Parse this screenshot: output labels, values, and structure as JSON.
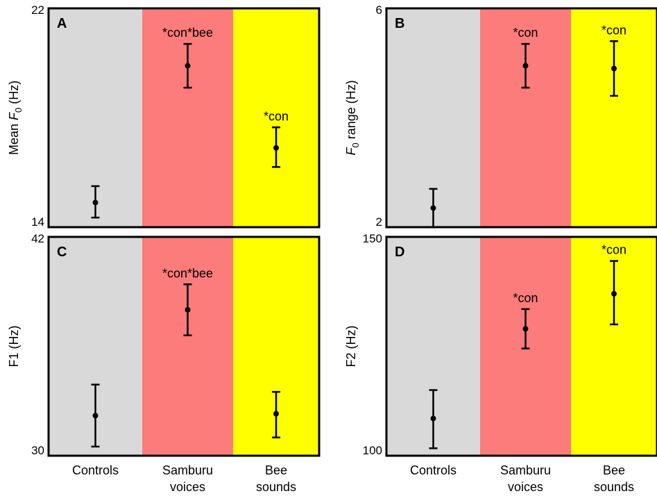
{
  "colors": {
    "controls_band": "#d9d9d9",
    "samburu_band": "#fc7b7b",
    "bee_band": "#ffff00",
    "frame": "#000000",
    "marker": "#000000"
  },
  "chart_data": [
    {
      "panel_letter": "A",
      "type": "scatter",
      "error_bars": true,
      "ylabel_pre": "Mean ",
      "ylabel_sym": "F",
      "ylabel_sub": "0",
      "ylabel_post": " (Hz)",
      "ylim": [
        14,
        22
      ],
      "y_ticks": [
        "22",
        "14"
      ],
      "categories": [
        "Controls",
        "Samburu voices",
        "Bee sounds"
      ],
      "points": [
        {
          "y": 14.9,
          "lo": 14.35,
          "hi": 15.5,
          "annotation": ""
        },
        {
          "y": 19.9,
          "lo": 19.1,
          "hi": 20.7,
          "annotation": "*con*bee"
        },
        {
          "y": 16.9,
          "lo": 16.2,
          "hi": 17.65,
          "annotation": "*con"
        }
      ]
    },
    {
      "panel_letter": "B",
      "type": "scatter",
      "error_bars": true,
      "ylabel_pre": "",
      "ylabel_sym": "F",
      "ylabel_sub": "0",
      "ylabel_post": " range (Hz)",
      "ylim": [
        2,
        6
      ],
      "y_ticks": [
        "6",
        "2"
      ],
      "categories": [
        "Controls",
        "Samburu voices",
        "Bee sounds"
      ],
      "points": [
        {
          "y": 2.35,
          "lo": 2.0,
          "hi": 2.7,
          "annotation": ""
        },
        {
          "y": 4.95,
          "lo": 4.55,
          "hi": 5.35,
          "annotation": "*con"
        },
        {
          "y": 4.9,
          "lo": 4.4,
          "hi": 5.4,
          "annotation": "*con"
        }
      ]
    },
    {
      "panel_letter": "C",
      "type": "scatter",
      "error_bars": true,
      "ylabel_pre": "F1 (Hz)",
      "ylabel_sym": "",
      "ylabel_sub": "",
      "ylabel_post": "",
      "ylim": [
        30,
        42
      ],
      "y_ticks": [
        "42",
        "30"
      ],
      "categories": [
        "Controls",
        "Samburu voices",
        "Bee sounds"
      ],
      "points": [
        {
          "y": 32.2,
          "lo": 30.5,
          "hi": 33.9,
          "annotation": ""
        },
        {
          "y": 38.0,
          "lo": 36.6,
          "hi": 39.4,
          "annotation": "*con*bee"
        },
        {
          "y": 32.3,
          "lo": 31.0,
          "hi": 33.5,
          "annotation": ""
        }
      ]
    },
    {
      "panel_letter": "D",
      "type": "scatter",
      "error_bars": true,
      "ylabel_pre": "F2 (Hz)",
      "ylabel_sym": "",
      "ylabel_sub": "",
      "ylabel_post": "",
      "ylim": [
        100,
        150
      ],
      "y_ticks": [
        "150",
        "100"
      ],
      "categories": [
        "Controls",
        "Samburu voices",
        "Bee sounds"
      ],
      "points": [
        {
          "y": 108.5,
          "lo": 101.7,
          "hi": 115.0,
          "annotation": ""
        },
        {
          "y": 129.0,
          "lo": 124.5,
          "hi": 133.5,
          "annotation": "*con"
        },
        {
          "y": 137.0,
          "lo": 130.0,
          "hi": 144.5,
          "annotation": "*con"
        }
      ]
    }
  ],
  "x_axis_labels": [
    {
      "line1": "Controls",
      "line2": ""
    },
    {
      "line1": "Samburu",
      "line2": "voices"
    },
    {
      "line1": "Bee",
      "line2": "sounds"
    }
  ]
}
